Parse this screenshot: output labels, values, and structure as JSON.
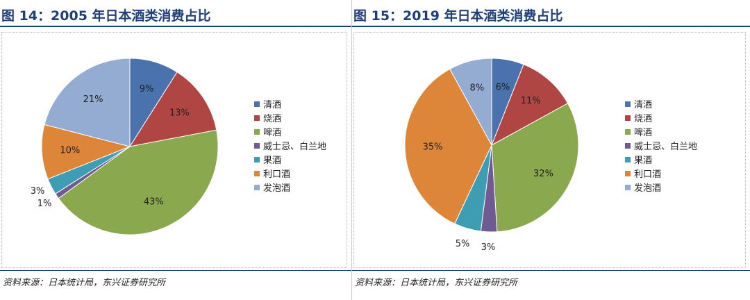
{
  "charts": [
    {
      "title": "图 14：2005 年日本酒类消费占比",
      "source": "资料来源：日本统计局，东兴证券研究所"
    },
    {
      "title": "图 15：2019 年日本酒类消费占比",
      "source": "资料来源：日本统计局，东兴证券研究所"
    }
  ],
  "chart_data": [
    {
      "type": "pie",
      "title": "图 14：2005 年日本酒类消费占比",
      "categories": [
        "清酒",
        "烧酒",
        "啤酒",
        "威士忌、白兰地",
        "果酒",
        "利口酒",
        "发泡酒"
      ],
      "values": [
        9,
        13,
        43,
        1,
        3,
        10,
        21
      ],
      "labels": [
        "9%",
        "13%",
        "43%",
        "1%",
        "3%",
        "10%",
        "21%"
      ],
      "colors": [
        "#4a72ad",
        "#b04643",
        "#8aa84d",
        "#6f5a92",
        "#3e9cb3",
        "#dd8639",
        "#94abd2"
      ],
      "legend": "right"
    },
    {
      "type": "pie",
      "title": "图 15：2019 年日本酒类消费占比",
      "categories": [
        "清酒",
        "烧酒",
        "啤酒",
        "威士忌、白兰地",
        "果酒",
        "利口酒",
        "发泡酒"
      ],
      "values": [
        6,
        11,
        32,
        3,
        5,
        35,
        8
      ],
      "labels": [
        "6%",
        "11%",
        "32%",
        "3%",
        "5%",
        "35%",
        "8%"
      ],
      "colors": [
        "#4a72ad",
        "#b04643",
        "#8aa84d",
        "#6f5a92",
        "#3e9cb3",
        "#dd8639",
        "#94abd2"
      ],
      "legend": "right"
    }
  ]
}
